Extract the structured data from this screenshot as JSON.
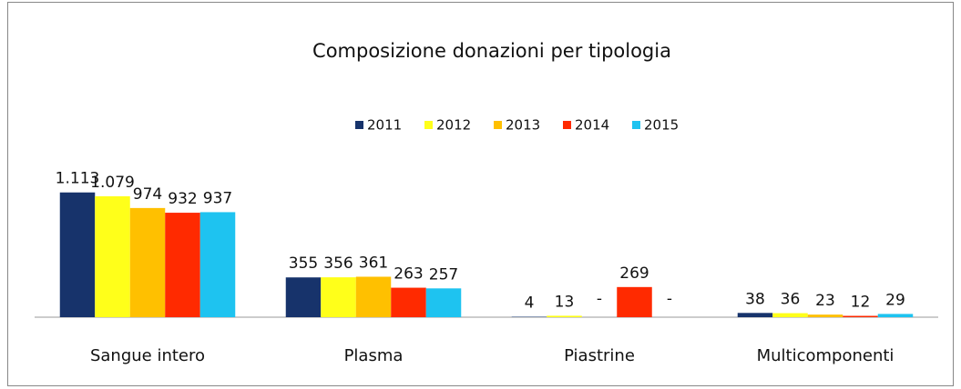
{
  "chart_data": {
    "type": "bar",
    "title": "Composizione donazioni per tipologia",
    "categories": [
      "Sangue intero",
      "Plasma",
      "Piastrine",
      "Multicomponenti"
    ],
    "series": [
      {
        "name": "2011",
        "color": "#17336b",
        "values": [
          1113,
          355,
          4,
          38
        ],
        "value_labels": [
          "1.113",
          "355",
          "4",
          "38"
        ]
      },
      {
        "name": "2012",
        "color": "#ffff1a",
        "values": [
          1079,
          356,
          13,
          36
        ],
        "value_labels": [
          "1.079",
          "356",
          "13",
          "36"
        ]
      },
      {
        "name": "2013",
        "color": "#ffc000",
        "values": [
          974,
          361,
          null,
          23
        ],
        "value_labels": [
          "974",
          "361",
          "-",
          "23"
        ]
      },
      {
        "name": "2014",
        "color": "#ff2a00",
        "values": [
          932,
          263,
          269,
          12
        ],
        "value_labels": [
          "932",
          "263",
          "269",
          "12"
        ]
      },
      {
        "name": "2015",
        "color": "#1ec3f0",
        "values": [
          937,
          257,
          null,
          29
        ],
        "value_labels": [
          "937",
          "257",
          "-",
          "29"
        ]
      }
    ],
    "ylim": [
      0,
      1200
    ],
    "legend": "top"
  }
}
